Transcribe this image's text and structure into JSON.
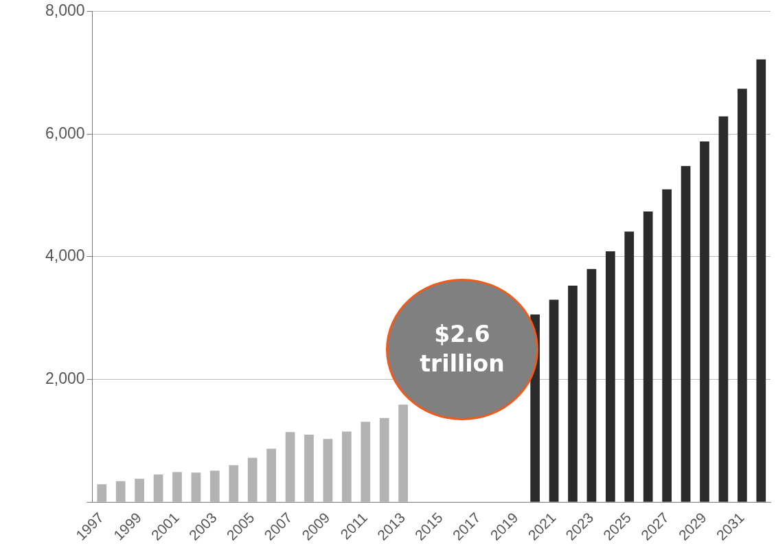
{
  "chart_data": {
    "type": "bar",
    "categories": [
      "1997",
      null,
      "1999",
      null,
      "2001",
      null,
      "2003",
      null,
      "2005",
      null,
      "2007",
      null,
      "2009",
      null,
      "2011",
      null,
      "2013",
      null,
      "2015",
      null,
      "2017",
      null,
      "2019",
      null,
      "2021",
      null,
      "2023",
      null,
      "2025",
      null,
      "2027",
      null,
      "2029",
      null,
      "2031",
      null
    ],
    "values": [
      290,
      340,
      380,
      450,
      490,
      480,
      510,
      600,
      720,
      870,
      1140,
      1100,
      1030,
      1150,
      1310,
      1370,
      1590,
      null,
      null,
      null,
      null,
      null,
      null,
      3060,
      3300,
      3530,
      3800,
      4090,
      4410,
      4740,
      5100,
      5480,
      5880,
      6290,
      6740,
      7220
    ],
    "colors": [
      "#b3b3b3",
      "#b3b3b3",
      "#b3b3b3",
      "#b3b3b3",
      "#b3b3b3",
      "#b3b3b3",
      "#b3b3b3",
      "#b3b3b3",
      "#b3b3b3",
      "#b3b3b3",
      "#b3b3b3",
      "#b3b3b3",
      "#b3b3b3",
      "#b3b3b3",
      "#b3b3b3",
      "#b3b3b3",
      "#b3b3b3",
      "#b3b3b3",
      "#b3b3b3",
      "#b3b3b3",
      "#b3b3b3",
      "#2b2b2b",
      "#2b2b2b",
      "#2b2b2b",
      "#2b2b2b",
      "#2b2b2b",
      "#2b2b2b",
      "#2b2b2b",
      "#2b2b2b",
      "#2b2b2b",
      "#2b2b2b",
      "#2b2b2b",
      "#2b2b2b",
      "#2b2b2b",
      "#2b2b2b",
      "#2b2b2b"
    ],
    "ylim": [
      0,
      8000
    ],
    "yticks": [
      {
        "value": 0,
        "label": null
      },
      {
        "value": 2000,
        "label": "2,000"
      },
      {
        "value": 4000,
        "label": "4,000"
      },
      {
        "value": 6000,
        "label": "6,000"
      },
      {
        "value": 8000,
        "label": "8,000"
      }
    ],
    "grid": "y",
    "annotations": [
      "$2.6 trillion"
    ]
  }
}
